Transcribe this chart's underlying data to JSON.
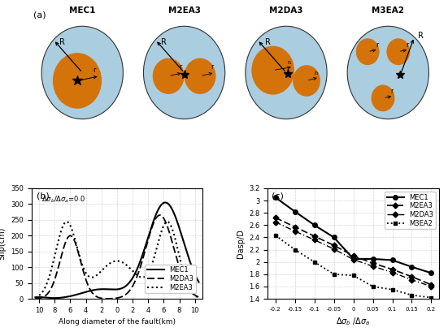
{
  "panel_a": {
    "models": [
      "MEC1",
      "M2EA3",
      "M2DA3",
      "M3EA2"
    ],
    "bg_color": "#aacde0",
    "asperity_color": "#d4730a",
    "outline_color": "#333333"
  },
  "panel_b": {
    "xlabel": "Along diameter of the fault(km)",
    "ylabel": "Slip(cm)",
    "xlim": [
      -11,
      11
    ],
    "ylim": [
      0,
      350
    ],
    "yticks": [
      0,
      50,
      100,
      150,
      200,
      250,
      300,
      350
    ],
    "xticks": [
      -10,
      -8,
      -6,
      -4,
      -2,
      0,
      2,
      4,
      6,
      8,
      10
    ],
    "xticklabels": [
      "10",
      "8",
      "6",
      "4",
      "2",
      "0",
      "2",
      "4",
      "6",
      "8",
      "10"
    ]
  },
  "panel_c": {
    "xlabel": "Δσ_b /Δσ_a",
    "ylabel": "Dasp/D",
    "xlim": [
      -0.22,
      0.22
    ],
    "ylim": [
      1.4,
      3.2
    ],
    "xticks": [
      -0.2,
      -0.15,
      -0.1,
      -0.05,
      0,
      0.05,
      0.1,
      0.15,
      0.2
    ],
    "yticks": [
      1.4,
      1.6,
      1.8,
      2.0,
      2.2,
      2.4,
      2.6,
      2.8,
      3.0,
      3.2
    ],
    "mec1_y": [
      3.05,
      2.82,
      2.6,
      2.4,
      2.05,
      2.05,
      2.03,
      1.92,
      1.82
    ],
    "m2ea3_y": [
      2.72,
      2.57,
      2.42,
      2.27,
      2.1,
      1.98,
      1.88,
      1.76,
      1.63
    ],
    "m2da3_y": [
      2.65,
      2.5,
      2.36,
      2.21,
      2.04,
      1.93,
      1.83,
      1.71,
      1.6
    ],
    "m3ea2_y": [
      2.43,
      2.2,
      2.0,
      1.8,
      1.78,
      1.6,
      1.55,
      1.46,
      1.42
    ]
  }
}
